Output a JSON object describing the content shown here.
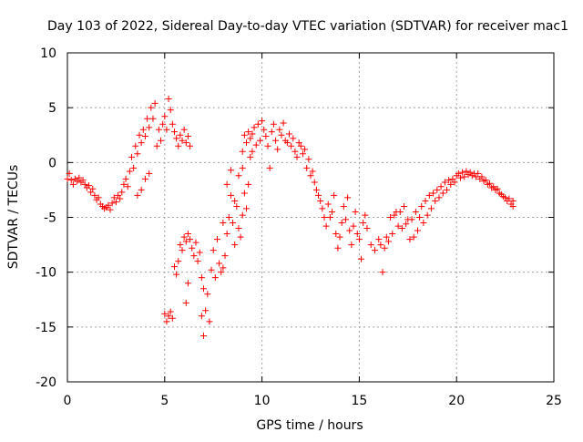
{
  "chart_data": {
    "type": "scatter",
    "title": "Day 103 of 2022, Sidereal Day-to-day VTEC variation (SDTVAR) for receiver mac1",
    "xlabel": "GPS time / hours",
    "ylabel": "SDTVAR / TECUs",
    "xlim": [
      0,
      25
    ],
    "ylim": [
      -20,
      10
    ],
    "x_ticks": [
      0,
      5,
      10,
      15,
      20,
      25
    ],
    "x_tick_labels": [
      "0",
      "5",
      "10",
      "15",
      "20",
      "25"
    ],
    "y_ticks": [
      -20,
      -15,
      -10,
      -5,
      0,
      5,
      10
    ],
    "y_tick_labels": [
      "-20",
      "-15",
      "-10",
      "-5",
      "0",
      "5",
      "10"
    ],
    "grid": true,
    "marker": "+",
    "series": [
      {
        "name": "SDTVAR mac1",
        "color": "#ff0000",
        "points": [
          [
            0.0,
            -1.5
          ],
          [
            0.1,
            -1.0
          ],
          [
            0.2,
            -1.6
          ],
          [
            0.3,
            -2.0
          ],
          [
            0.4,
            -1.5
          ],
          [
            0.5,
            -1.7
          ],
          [
            0.6,
            -1.4
          ],
          [
            0.7,
            -1.8
          ],
          [
            0.8,
            -1.6
          ],
          [
            0.9,
            -2.0
          ],
          [
            1.0,
            -2.3
          ],
          [
            1.1,
            -2.1
          ],
          [
            1.2,
            -2.7
          ],
          [
            1.3,
            -2.4
          ],
          [
            1.4,
            -3.0
          ],
          [
            1.5,
            -3.4
          ],
          [
            1.6,
            -3.2
          ],
          [
            1.7,
            -3.8
          ],
          [
            1.8,
            -4.0
          ],
          [
            1.9,
            -4.2
          ],
          [
            2.0,
            -4.1
          ],
          [
            2.1,
            -3.9
          ],
          [
            2.2,
            -4.3
          ],
          [
            2.3,
            -3.7
          ],
          [
            2.4,
            -3.2
          ],
          [
            2.5,
            -3.6
          ],
          [
            2.6,
            -3.0
          ],
          [
            2.7,
            -3.3
          ],
          [
            2.8,
            -2.7
          ],
          [
            2.9,
            -2.0
          ],
          [
            3.0,
            -1.5
          ],
          [
            3.1,
            -2.2
          ],
          [
            3.2,
            -0.8
          ],
          [
            3.3,
            0.5
          ],
          [
            3.4,
            -0.5
          ],
          [
            3.5,
            1.5
          ],
          [
            3.6,
            0.8
          ],
          [
            3.7,
            2.5
          ],
          [
            3.8,
            1.8
          ],
          [
            3.9,
            3.0
          ],
          [
            4.0,
            2.4
          ],
          [
            4.1,
            4.0
          ],
          [
            4.2,
            3.2
          ],
          [
            4.3,
            5.0
          ],
          [
            4.4,
            4.0
          ],
          [
            4.5,
            5.4
          ],
          [
            4.2,
            -1.0
          ],
          [
            4.0,
            -1.5
          ],
          [
            3.8,
            -2.5
          ],
          [
            3.6,
            -3.0
          ],
          [
            4.6,
            1.5
          ],
          [
            4.7,
            3.0
          ],
          [
            4.8,
            2.0
          ],
          [
            4.9,
            3.5
          ],
          [
            5.0,
            4.2
          ],
          [
            5.1,
            3.0
          ],
          [
            5.2,
            5.8
          ],
          [
            5.3,
            4.8
          ],
          [
            5.4,
            3.5
          ],
          [
            5.5,
            2.8
          ],
          [
            5.6,
            2.2
          ],
          [
            5.7,
            1.5
          ],
          [
            5.8,
            2.5
          ],
          [
            5.9,
            2.0
          ],
          [
            6.0,
            3.0
          ],
          [
            6.1,
            1.8
          ],
          [
            6.2,
            2.4
          ],
          [
            6.3,
            1.5
          ],
          [
            5.0,
            -13.8
          ],
          [
            5.1,
            -14.5
          ],
          [
            5.2,
            -14.0
          ],
          [
            5.3,
            -13.6
          ],
          [
            5.4,
            -14.2
          ],
          [
            5.5,
            -9.5
          ],
          [
            5.6,
            -10.2
          ],
          [
            5.7,
            -9.0
          ],
          [
            5.8,
            -7.5
          ],
          [
            5.9,
            -8.0
          ],
          [
            6.0,
            -6.8
          ],
          [
            6.1,
            -7.2
          ],
          [
            6.2,
            -6.5
          ],
          [
            6.3,
            -7.0
          ],
          [
            6.1,
            -12.8
          ],
          [
            6.2,
            -11.0
          ],
          [
            6.4,
            -7.8
          ],
          [
            6.5,
            -8.5
          ],
          [
            6.6,
            -7.3
          ],
          [
            6.7,
            -9.0
          ],
          [
            6.8,
            -8.2
          ],
          [
            6.9,
            -10.5
          ],
          [
            7.0,
            -11.5
          ],
          [
            6.9,
            -14.0
          ],
          [
            7.0,
            -15.8
          ],
          [
            7.1,
            -13.5
          ],
          [
            7.2,
            -12.0
          ],
          [
            7.3,
            -14.5
          ],
          [
            7.4,
            -9.8
          ],
          [
            7.5,
            -8.0
          ],
          [
            7.6,
            -10.5
          ],
          [
            7.7,
            -7.0
          ],
          [
            7.8,
            -9.2
          ],
          [
            7.9,
            -10.0
          ],
          [
            8.0,
            -9.6
          ],
          [
            8.1,
            -8.5
          ],
          [
            8.2,
            -6.5
          ],
          [
            8.3,
            -5.0
          ],
          [
            8.4,
            -3.0
          ],
          [
            8.5,
            -5.5
          ],
          [
            8.6,
            -7.5
          ],
          [
            8.7,
            -4.0
          ],
          [
            8.8,
            -6.0
          ],
          [
            8.9,
            -6.8
          ],
          [
            9.0,
            -4.8
          ],
          [
            9.1,
            -2.8
          ],
          [
            8.0,
            -5.5
          ],
          [
            8.2,
            -2.0
          ],
          [
            8.4,
            -0.7
          ],
          [
            8.6,
            -3.5
          ],
          [
            8.8,
            -1.2
          ],
          [
            9.0,
            -0.5
          ],
          [
            9.2,
            -4.2
          ],
          [
            9.3,
            -2.0
          ],
          [
            9.4,
            0.5
          ],
          [
            9.5,
            1.0
          ],
          [
            9.0,
            1.0
          ],
          [
            9.1,
            2.5
          ],
          [
            9.2,
            1.8
          ],
          [
            9.3,
            2.8
          ],
          [
            9.4,
            2.2
          ],
          [
            9.5,
            2.6
          ],
          [
            9.6,
            3.2
          ],
          [
            9.7,
            1.6
          ],
          [
            9.8,
            3.5
          ],
          [
            9.9,
            2.0
          ],
          [
            10.0,
            3.8
          ],
          [
            10.1,
            3.0
          ],
          [
            10.2,
            2.4
          ],
          [
            10.3,
            1.5
          ],
          [
            10.4,
            -0.5
          ],
          [
            10.5,
            2.8
          ],
          [
            10.6,
            3.5
          ],
          [
            10.7,
            2.0
          ],
          [
            10.8,
            1.2
          ],
          [
            10.9,
            3.0
          ],
          [
            11.0,
            2.5
          ],
          [
            11.1,
            3.6
          ],
          [
            11.2,
            2.0
          ],
          [
            11.3,
            1.8
          ],
          [
            11.4,
            2.6
          ],
          [
            11.5,
            1.5
          ],
          [
            11.6,
            2.2
          ],
          [
            11.7,
            1.0
          ],
          [
            11.8,
            0.5
          ],
          [
            11.9,
            1.8
          ],
          [
            12.0,
            1.5
          ],
          [
            12.1,
            0.8
          ],
          [
            12.2,
            1.2
          ],
          [
            12.3,
            -0.5
          ],
          [
            12.4,
            0.3
          ],
          [
            12.5,
            -1.2
          ],
          [
            12.6,
            -0.8
          ],
          [
            12.7,
            -1.8
          ],
          [
            12.8,
            -2.5
          ],
          [
            12.9,
            -3.0
          ],
          [
            13.0,
            -3.5
          ],
          [
            13.1,
            -4.2
          ],
          [
            13.2,
            -5.0
          ],
          [
            13.3,
            -5.8
          ],
          [
            13.4,
            -3.8
          ],
          [
            13.5,
            -5.0
          ],
          [
            13.6,
            -4.5
          ],
          [
            13.7,
            -3.0
          ],
          [
            13.8,
            -6.5
          ],
          [
            13.9,
            -7.8
          ],
          [
            14.0,
            -6.8
          ],
          [
            14.1,
            -5.5
          ],
          [
            14.2,
            -4.0
          ],
          [
            14.3,
            -5.2
          ],
          [
            14.4,
            -3.2
          ],
          [
            14.5,
            -6.2
          ],
          [
            14.6,
            -7.5
          ],
          [
            14.7,
            -5.8
          ],
          [
            14.8,
            -4.5
          ],
          [
            14.9,
            -6.5
          ],
          [
            15.0,
            -7.0
          ],
          [
            15.1,
            -8.8
          ],
          [
            15.2,
            -5.5
          ],
          [
            15.3,
            -4.8
          ],
          [
            15.4,
            -6.0
          ],
          [
            15.6,
            -7.5
          ],
          [
            15.8,
            -8.0
          ],
          [
            16.0,
            -7.0
          ],
          [
            16.1,
            -7.5
          ],
          [
            16.2,
            -10.0
          ],
          [
            16.3,
            -7.8
          ],
          [
            16.4,
            -6.8
          ],
          [
            16.5,
            -7.2
          ],
          [
            16.6,
            -5.0
          ],
          [
            16.7,
            -6.5
          ],
          [
            16.8,
            -4.8
          ],
          [
            16.9,
            -4.5
          ],
          [
            17.0,
            -5.8
          ],
          [
            17.1,
            -4.5
          ],
          [
            17.2,
            -6.0
          ],
          [
            17.3,
            -4.0
          ],
          [
            17.4,
            -5.6
          ],
          [
            17.5,
            -5.2
          ],
          [
            17.6,
            -7.0
          ],
          [
            17.7,
            -5.2
          ],
          [
            17.8,
            -6.8
          ],
          [
            17.9,
            -4.5
          ],
          [
            18.0,
            -6.2
          ],
          [
            18.1,
            -5.0
          ],
          [
            18.2,
            -4.0
          ],
          [
            18.3,
            -5.5
          ],
          [
            18.4,
            -3.5
          ],
          [
            18.5,
            -4.8
          ],
          [
            18.6,
            -3.0
          ],
          [
            18.7,
            -4.2
          ],
          [
            18.8,
            -2.8
          ],
          [
            18.9,
            -3.5
          ],
          [
            19.0,
            -2.5
          ],
          [
            19.1,
            -3.2
          ],
          [
            19.2,
            -2.2
          ],
          [
            19.3,
            -2.8
          ],
          [
            19.4,
            -1.8
          ],
          [
            19.5,
            -2.5
          ],
          [
            19.6,
            -1.6
          ],
          [
            19.7,
            -2.0
          ],
          [
            19.8,
            -1.5
          ],
          [
            19.9,
            -1.8
          ],
          [
            20.0,
            -1.2
          ],
          [
            20.1,
            -1.0
          ],
          [
            20.2,
            -1.4
          ],
          [
            20.3,
            -0.9
          ],
          [
            20.4,
            -1.3
          ],
          [
            20.5,
            -0.8
          ],
          [
            20.6,
            -1.1
          ],
          [
            20.7,
            -0.9
          ],
          [
            20.8,
            -1.2
          ],
          [
            20.9,
            -1.0
          ],
          [
            21.0,
            -1.3
          ],
          [
            21.1,
            -1.0
          ],
          [
            21.2,
            -1.5
          ],
          [
            21.3,
            -1.3
          ],
          [
            21.4,
            -1.7
          ],
          [
            21.5,
            -1.6
          ],
          [
            21.6,
            -2.0
          ],
          [
            21.7,
            -1.9
          ],
          [
            21.8,
            -2.3
          ],
          [
            21.9,
            -2.2
          ],
          [
            22.0,
            -2.5
          ],
          [
            22.1,
            -2.4
          ],
          [
            22.2,
            -2.8
          ],
          [
            22.3,
            -2.9
          ],
          [
            22.4,
            -3.1
          ],
          [
            22.5,
            -3.2
          ],
          [
            22.6,
            -3.5
          ],
          [
            22.7,
            -3.3
          ],
          [
            22.8,
            -3.8
          ],
          [
            22.9,
            -3.5
          ],
          [
            22.9,
            -4.0
          ]
        ]
      }
    ]
  }
}
